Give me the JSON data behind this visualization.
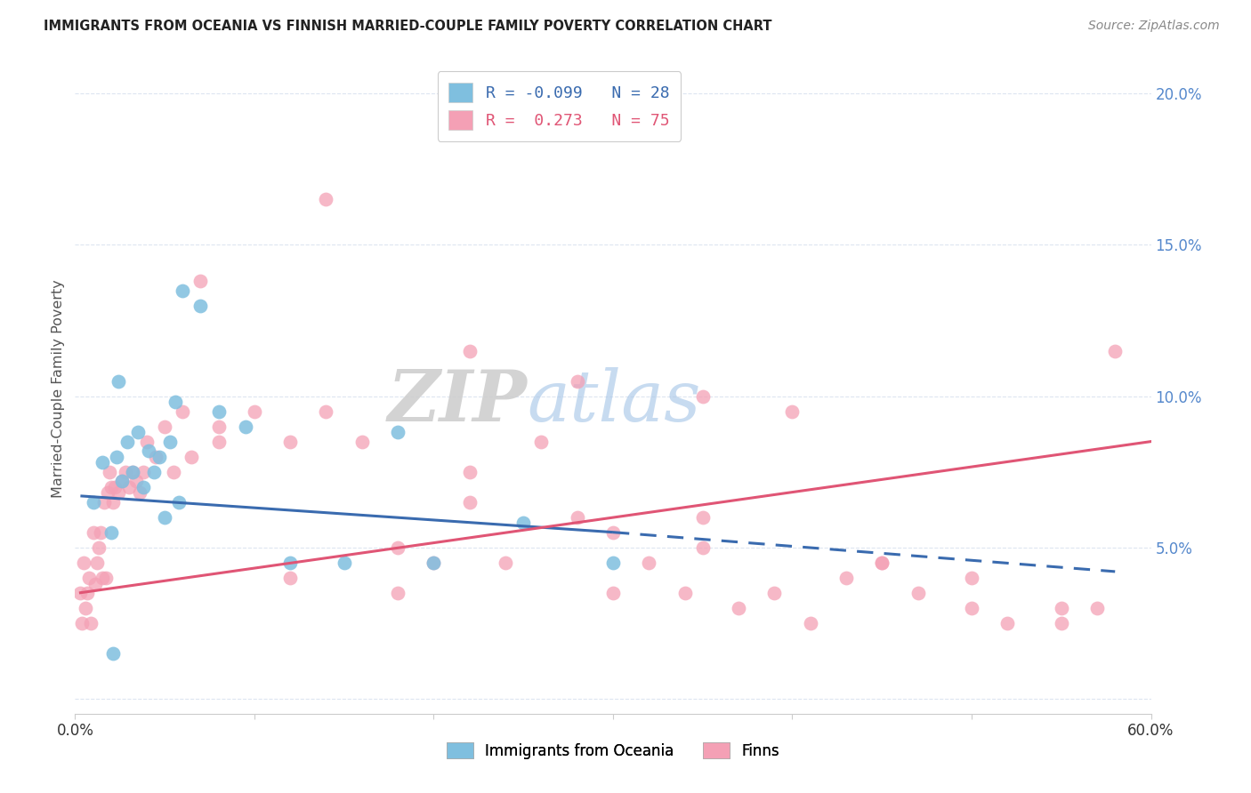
{
  "title": "IMMIGRANTS FROM OCEANIA VS FINNISH MARRIED-COUPLE FAMILY POVERTY CORRELATION CHART",
  "source": "Source: ZipAtlas.com",
  "ylabel": "Married-Couple Family Poverty",
  "xlim": [
    0.0,
    60.0
  ],
  "ylim": [
    -0.5,
    21.0
  ],
  "yticks": [
    0.0,
    5.0,
    10.0,
    15.0,
    20.0
  ],
  "ytick_labels": [
    "",
    "5.0%",
    "10.0%",
    "15.0%",
    "20.0%"
  ],
  "legend_label1": "Immigrants from Oceania",
  "legend_label2": "Finns",
  "R1": "-0.099",
  "N1": "28",
  "R2": "0.273",
  "N2": "75",
  "blue_color": "#7fbfdf",
  "pink_color": "#f4a0b5",
  "blue_line_color": "#3a6baf",
  "pink_line_color": "#e05575",
  "background_color": "#ffffff",
  "grid_color": "#dde5f0",
  "blue_line_start_x": 0.3,
  "blue_line_start_y": 6.7,
  "blue_line_end_x": 30.0,
  "blue_line_end_y": 5.5,
  "blue_line_dash_end_x": 58.0,
  "blue_line_dash_end_y": 4.2,
  "pink_line_start_x": 0.3,
  "pink_line_start_y": 3.5,
  "pink_line_end_x": 60.0,
  "pink_line_end_y": 8.5,
  "blue_scatter_x": [
    1.0,
    1.5,
    2.0,
    2.3,
    2.6,
    2.9,
    3.2,
    3.5,
    3.8,
    4.1,
    4.4,
    4.7,
    5.0,
    5.3,
    5.6,
    6.0,
    7.0,
    8.0,
    9.5,
    12.0,
    15.0,
    18.0,
    20.0,
    25.0,
    30.0,
    2.1,
    2.4,
    5.8
  ],
  "blue_scatter_y": [
    6.5,
    7.8,
    5.5,
    8.0,
    7.2,
    8.5,
    7.5,
    8.8,
    7.0,
    8.2,
    7.5,
    8.0,
    6.0,
    8.5,
    9.8,
    13.5,
    13.0,
    9.5,
    9.0,
    4.5,
    4.5,
    8.8,
    4.5,
    5.8,
    4.5,
    1.5,
    10.5,
    6.5
  ],
  "pink_scatter_x": [
    0.3,
    0.4,
    0.5,
    0.6,
    0.7,
    0.8,
    0.9,
    1.0,
    1.1,
    1.2,
    1.3,
    1.4,
    1.5,
    1.6,
    1.7,
    1.8,
    1.9,
    2.0,
    2.1,
    2.2,
    2.4,
    2.6,
    2.8,
    3.0,
    3.2,
    3.4,
    3.6,
    3.8,
    4.0,
    4.5,
    5.0,
    5.5,
    6.0,
    6.5,
    7.0,
    8.0,
    10.0,
    12.0,
    14.0,
    16.0,
    18.0,
    20.0,
    22.0,
    24.0,
    26.0,
    28.0,
    30.0,
    32.0,
    34.0,
    35.0,
    37.0,
    39.0,
    41.0,
    43.0,
    45.0,
    47.0,
    50.0,
    52.0,
    55.0,
    57.0,
    14.0,
    22.0,
    28.0,
    35.0,
    40.0,
    45.0,
    50.0,
    55.0,
    58.0,
    30.0,
    35.0,
    22.0,
    18.0,
    12.0,
    8.0
  ],
  "pink_scatter_y": [
    3.5,
    2.5,
    4.5,
    3.0,
    3.5,
    4.0,
    2.5,
    5.5,
    3.8,
    4.5,
    5.0,
    5.5,
    4.0,
    6.5,
    4.0,
    6.8,
    7.5,
    7.0,
    6.5,
    7.0,
    6.8,
    7.2,
    7.5,
    7.0,
    7.5,
    7.2,
    6.8,
    7.5,
    8.5,
    8.0,
    9.0,
    7.5,
    9.5,
    8.0,
    13.8,
    8.5,
    9.5,
    8.5,
    9.5,
    8.5,
    3.5,
    4.5,
    7.5,
    4.5,
    8.5,
    6.0,
    5.5,
    4.5,
    3.5,
    6.0,
    3.0,
    3.5,
    2.5,
    4.0,
    4.5,
    3.5,
    3.0,
    2.5,
    2.5,
    3.0,
    16.5,
    11.5,
    10.5,
    10.0,
    9.5,
    4.5,
    4.0,
    3.0,
    11.5,
    3.5,
    5.0,
    6.5,
    5.0,
    4.0,
    9.0
  ]
}
